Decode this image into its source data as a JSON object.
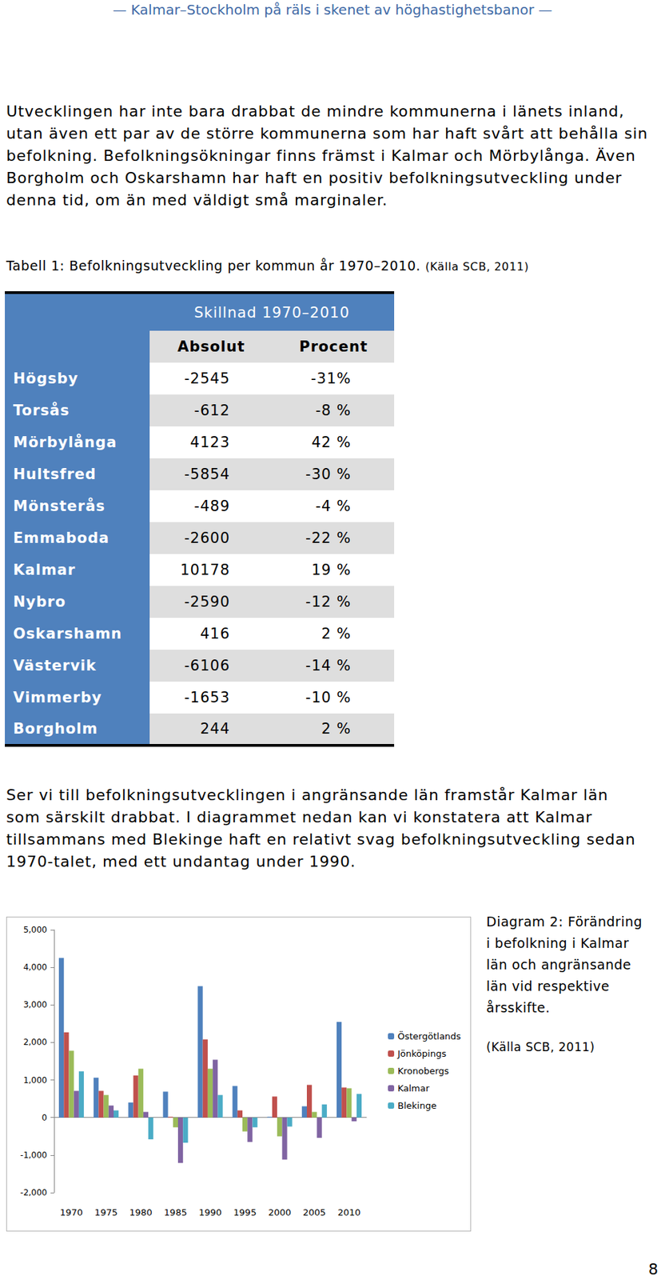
{
  "header": "— Kalmar–Stockholm på räls i skenet av höghastighetsbanor —",
  "paragraphs": [
    [
      "Utvecklingen har inte bara drabbat de mindre kommunerna i länets inland,",
      "utan även ett par av de större kommunerna som har haft svårt att behålla sin",
      "befolkning. Befolkningsökningar finns främst i Kalmar och Mörbylånga. Även",
      "Borgholm och Oskarshamn har haft en positiv befolkningsutveckling under",
      "denna tid, om än med väldigt små marginaler."
    ],
    [
      "Ser vi till befolkningsutvecklingen i angränsande län framstår Kalmar län",
      "som särskilt drabbat. I diagrammet nedan kan vi konstatera att Kalmar",
      "tillsammans med Blekinge haft en relativt svag befolkningsutveckling sedan",
      "1970-talet, med ett undantag under 1990."
    ]
  ],
  "table": {
    "caption": "Tabell 1: Befolkningsutveckling per kommun år 1970–2010.",
    "source": "(Källa SCB, 2011)",
    "group_header": "Skillnad 1970–2010",
    "columns": [
      "Absolut",
      "Procent"
    ],
    "rows": [
      [
        "Högsby",
        "-2545",
        "-31%"
      ],
      [
        "Torsås",
        "-612",
        "-8 %"
      ],
      [
        "Mörbylånga",
        "4123",
        "42 %"
      ],
      [
        "Hultsfred",
        "-5854",
        "-30 %"
      ],
      [
        "Mönsterås",
        "-489",
        "-4 %"
      ],
      [
        "Emmaboda",
        "-2600",
        "-22 %"
      ],
      [
        "Kalmar",
        "10178",
        "19 %"
      ],
      [
        "Nybro",
        "-2590",
        "-12 %"
      ],
      [
        "Oskarshamn",
        "416",
        "2 %"
      ],
      [
        "Västervik",
        "-6106",
        "-14 %"
      ],
      [
        "Vimmerby",
        "-1653",
        "-10 %"
      ],
      [
        "Borgholm",
        "244",
        "2 %"
      ]
    ]
  },
  "chart_data": {
    "type": "bar",
    "caption": [
      "Diagram 2: Förändring",
      "i befolkning i Kalmar",
      "län och angränsande",
      "län vid respektive",
      "årsskifte."
    ],
    "source": "(Källa SCB, 2011)",
    "categories": [
      "1970",
      "1975",
      "1980",
      "1985",
      "1990",
      "1995",
      "2000",
      "2005",
      "2010"
    ],
    "series": [
      {
        "name": "Östergötlands",
        "color": "#4f81bd",
        "values": [
          4250,
          1060,
          400,
          690,
          3500,
          840,
          20,
          300,
          2550
        ]
      },
      {
        "name": "Jönköpings",
        "color": "#c0504d",
        "values": [
          2270,
          710,
          1120,
          20,
          2080,
          190,
          560,
          870,
          800
        ]
      },
      {
        "name": "Kronobergs",
        "color": "#9bbb59",
        "values": [
          1780,
          600,
          1300,
          -260,
          1300,
          -370,
          -500,
          150,
          780
        ]
      },
      {
        "name": "Kalmar",
        "color": "#8064a2",
        "values": [
          710,
          320,
          150,
          -1210,
          1540,
          -650,
          -1120,
          -540,
          -100
        ]
      },
      {
        "name": "Blekinge",
        "color": "#4bacc6",
        "values": [
          1230,
          190,
          -580,
          -670,
          600,
          -260,
          -240,
          350,
          630
        ]
      }
    ],
    "ylim": [
      -2000,
      5000
    ],
    "yticks": [
      -2000,
      -1000,
      0,
      1000,
      2000,
      3000,
      4000,
      5000
    ],
    "grid": false,
    "legend": "right"
  },
  "page_number": "8"
}
